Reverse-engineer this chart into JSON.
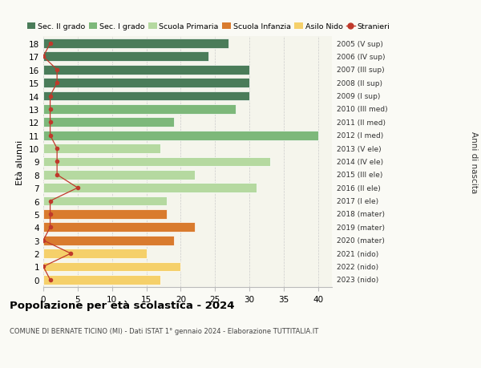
{
  "ages": [
    18,
    17,
    16,
    15,
    14,
    13,
    12,
    11,
    10,
    9,
    8,
    7,
    6,
    5,
    4,
    3,
    2,
    1,
    0
  ],
  "bar_values": [
    27,
    24,
    30,
    30,
    30,
    28,
    19,
    40,
    17,
    33,
    22,
    31,
    18,
    18,
    22,
    19,
    15,
    20,
    17
  ],
  "stranieri_values": [
    1,
    0,
    2,
    2,
    1,
    1,
    1,
    1,
    2,
    2,
    2,
    5,
    1,
    1,
    1,
    0,
    4,
    0,
    1
  ],
  "right_labels": [
    "2005 (V sup)",
    "2006 (IV sup)",
    "2007 (III sup)",
    "2008 (II sup)",
    "2009 (I sup)",
    "2010 (III med)",
    "2011 (II med)",
    "2012 (I med)",
    "2013 (V ele)",
    "2014 (IV ele)",
    "2015 (III ele)",
    "2016 (II ele)",
    "2017 (I ele)",
    "2018 (mater)",
    "2019 (mater)",
    "2020 (mater)",
    "2021 (nido)",
    "2022 (nido)",
    "2023 (nido)"
  ],
  "bar_colors": [
    "#4a7c59",
    "#4a7c59",
    "#4a7c59",
    "#4a7c59",
    "#4a7c59",
    "#7db87a",
    "#7db87a",
    "#7db87a",
    "#b5d9a0",
    "#b5d9a0",
    "#b5d9a0",
    "#b5d9a0",
    "#b5d9a0",
    "#d97b2e",
    "#d97b2e",
    "#d97b2e",
    "#f5d06a",
    "#f5d06a",
    "#f5d06a"
  ],
  "stranieri_color": "#c0392b",
  "bar_height": 0.72,
  "xlim": [
    0,
    42
  ],
  "xticks": [
    0,
    5,
    10,
    15,
    20,
    25,
    30,
    35,
    40
  ],
  "ylabel_left": "Età alunni",
  "ylabel_right": "Anni di nascita",
  "title": "Popolazione per età scolastica - 2024",
  "subtitle": "COMUNE DI BERNATE TICINO (MI) - Dati ISTAT 1° gennaio 2024 - Elaborazione TUTTITALIA.IT",
  "bg_color": "#fafaf5",
  "plot_bg_color": "#f5f5ec",
  "legend_labels": [
    "Sec. II grado",
    "Sec. I grado",
    "Scuola Primaria",
    "Scuola Infanzia",
    "Asilo Nido",
    "Stranieri"
  ],
  "legend_colors": [
    "#4a7c59",
    "#7db87a",
    "#b5d9a0",
    "#d97b2e",
    "#f5d06a",
    "#c0392b"
  ]
}
